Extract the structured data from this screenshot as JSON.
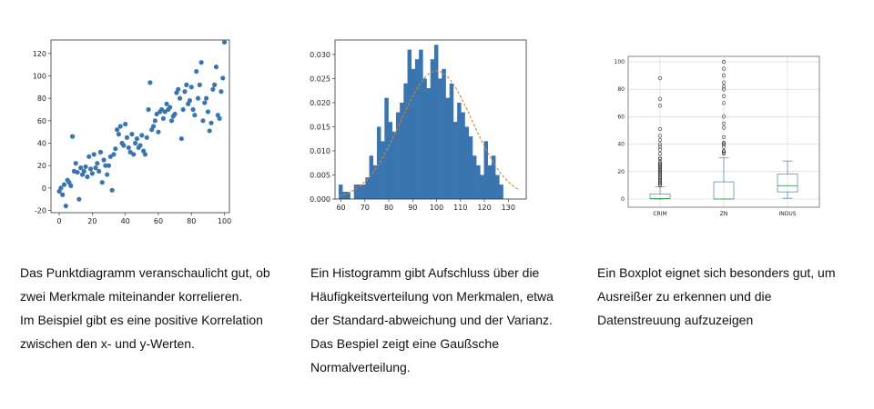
{
  "colors": {
    "accent": "#3a75b0",
    "fit_line": "#c98a3a",
    "box_line": "#5b8fb9",
    "median": "#3c9a5a",
    "grid": "#d8d8d8"
  },
  "chart_data": [
    {
      "type": "scatter",
      "title": "",
      "xlabel": "",
      "ylabel": "",
      "xlim": [
        -5,
        103
      ],
      "ylim": [
        -22,
        132
      ],
      "xticks": [
        0,
        20,
        40,
        60,
        80,
        100
      ],
      "yticks": [
        -20,
        0,
        20,
        40,
        60,
        80,
        100,
        120
      ],
      "grid": false,
      "points": [
        [
          0,
          -3
        ],
        [
          1,
          0
        ],
        [
          2,
          -6
        ],
        [
          3,
          3
        ],
        [
          4,
          -16
        ],
        [
          5,
          7
        ],
        [
          6,
          5
        ],
        [
          7,
          2
        ],
        [
          8,
          46
        ],
        [
          9,
          15
        ],
        [
          10,
          22
        ],
        [
          11,
          14
        ],
        [
          12,
          -10
        ],
        [
          13,
          18
        ],
        [
          14,
          12
        ],
        [
          15,
          15
        ],
        [
          16,
          19
        ],
        [
          17,
          10
        ],
        [
          18,
          28
        ],
        [
          19,
          17
        ],
        [
          20,
          13
        ],
        [
          21,
          30
        ],
        [
          22,
          18
        ],
        [
          23,
          22
        ],
        [
          24,
          15
        ],
        [
          25,
          32
        ],
        [
          26,
          5
        ],
        [
          27,
          25
        ],
        [
          28,
          20
        ],
        [
          29,
          12
        ],
        [
          30,
          20
        ],
        [
          31,
          28
        ],
        [
          32,
          -2
        ],
        [
          33,
          30
        ],
        [
          34,
          35
        ],
        [
          35,
          52
        ],
        [
          36,
          48
        ],
        [
          37,
          55
        ],
        [
          38,
          40
        ],
        [
          39,
          38
        ],
        [
          40,
          57
        ],
        [
          41,
          45
        ],
        [
          42,
          36
        ],
        [
          43,
          32
        ],
        [
          44,
          48
        ],
        [
          45,
          30
        ],
        [
          46,
          40
        ],
        [
          47,
          44
        ],
        [
          48,
          36
        ],
        [
          49,
          38
        ],
        [
          50,
          47
        ],
        [
          51,
          33
        ],
        [
          52,
          30
        ],
        [
          53,
          45
        ],
        [
          54,
          70
        ],
        [
          55,
          94
        ],
        [
          56,
          52
        ],
        [
          57,
          55
        ],
        [
          58,
          60
        ],
        [
          59,
          66
        ],
        [
          60,
          50
        ],
        [
          61,
          68
        ],
        [
          62,
          70
        ],
        [
          63,
          62
        ],
        [
          64,
          68
        ],
        [
          65,
          75
        ],
        [
          66,
          70
        ],
        [
          67,
          72
        ],
        [
          68,
          60
        ],
        [
          69,
          64
        ],
        [
          70,
          66
        ],
        [
          71,
          85
        ],
        [
          72,
          88
        ],
        [
          73,
          80
        ],
        [
          74,
          44
        ],
        [
          75,
          70
        ],
        [
          76,
          86
        ],
        [
          77,
          92
        ],
        [
          78,
          75
        ],
        [
          79,
          78
        ],
        [
          80,
          90
        ],
        [
          81,
          70
        ],
        [
          82,
          65
        ],
        [
          83,
          104
        ],
        [
          84,
          80
        ],
        [
          85,
          92
        ],
        [
          86,
          112
        ],
        [
          87,
          60
        ],
        [
          88,
          76
        ],
        [
          89,
          80
        ],
        [
          90,
          68
        ],
        [
          91,
          51
        ],
        [
          92,
          58
        ],
        [
          93,
          88
        ],
        [
          94,
          92
        ],
        [
          95,
          108
        ],
        [
          96,
          65
        ],
        [
          97,
          62
        ],
        [
          98,
          86
        ],
        [
          99,
          98
        ],
        [
          100,
          130
        ]
      ]
    },
    {
      "type": "bar",
      "subtype": "histogram",
      "title": "",
      "xlabel": "",
      "ylabel": "",
      "xlim": [
        57.5,
        137.5
      ],
      "ylim": [
        0,
        0.033
      ],
      "xticks": [
        60,
        70,
        80,
        90,
        100,
        110,
        120,
        130
      ],
      "yticks": [
        "0.000",
        "0.005",
        "0.010",
        "0.015",
        "0.020",
        "0.025",
        "0.030"
      ],
      "bin_start": 59,
      "bin_width": 1.6,
      "values": [
        0.003,
        0.0015,
        0.0015,
        0.0,
        0.003,
        0.003,
        0.003,
        0.0045,
        0.009,
        0.007,
        0.015,
        0.012,
        0.021,
        0.016,
        0.014,
        0.018,
        0.02,
        0.024,
        0.031,
        0.027,
        0.029,
        0.031,
        0.025,
        0.023,
        0.029,
        0.032,
        0.025,
        0.027,
        0.021,
        0.024,
        0.016,
        0.02,
        0.018,
        0.015,
        0.013,
        0.009,
        0.007,
        0.005,
        0.012,
        0.007,
        0.009,
        0.005,
        0.003
      ],
      "fit_curve": {
        "type": "normal",
        "mean": 100,
        "sd": 15
      }
    },
    {
      "type": "box",
      "title": "",
      "xlabel": "",
      "ylabel": "",
      "ylim": [
        -6,
        104
      ],
      "yticks": [
        0,
        20,
        40,
        60,
        80,
        100
      ],
      "grid": true,
      "categories": [
        "CRIM",
        "ZN",
        "INDUS"
      ],
      "boxes": [
        {
          "whisker_low": 0,
          "q1": 0.1,
          "median": 0.3,
          "q3": 3.7,
          "whisker_high": 9,
          "outliers": [
            10,
            11,
            12,
            13,
            14,
            15,
            16,
            17,
            18,
            19,
            20,
            21,
            22,
            23,
            24,
            25,
            26,
            27,
            29,
            30,
            33,
            36,
            38,
            40,
            43,
            46,
            51,
            68,
            73,
            88
          ]
        },
        {
          "whisker_low": 0,
          "q1": 0,
          "median": 0,
          "q3": 12.5,
          "whisker_high": 30,
          "outliers": [
            33,
            34,
            35,
            38,
            40,
            40,
            41,
            45,
            52,
            55,
            60,
            70,
            75,
            80,
            82,
            85,
            90,
            95,
            100
          ]
        },
        {
          "whisker_low": 0.5,
          "q1": 5.2,
          "median": 9.7,
          "q3": 18.1,
          "whisker_high": 27.7,
          "outliers": []
        }
      ]
    }
  ],
  "captions": [
    {
      "lines": [
        "Das Punktdiagramm veranschaulicht gut, ob",
        "zwei Merkmale miteinander korrelieren.",
        "Im Beispiel gibt es eine positive Korrelation",
        "zwischen den x- und y-Werten."
      ]
    },
    {
      "lines": [
        "Ein Histogramm gibt Aufschluss über die",
        "Häufigkeitsverteilung von Merkmalen, etwa",
        "der Standard-abweichung und der Varianz.",
        "Das Bespiel zeigt eine Gaußsche",
        "Normalverteilung."
      ]
    },
    {
      "lines": [
        "Ein Boxplot eignet sich besonders gut, um",
        "Ausreißer zu erkennen und die",
        "Datenstreuung aufzuzeigen"
      ]
    }
  ]
}
